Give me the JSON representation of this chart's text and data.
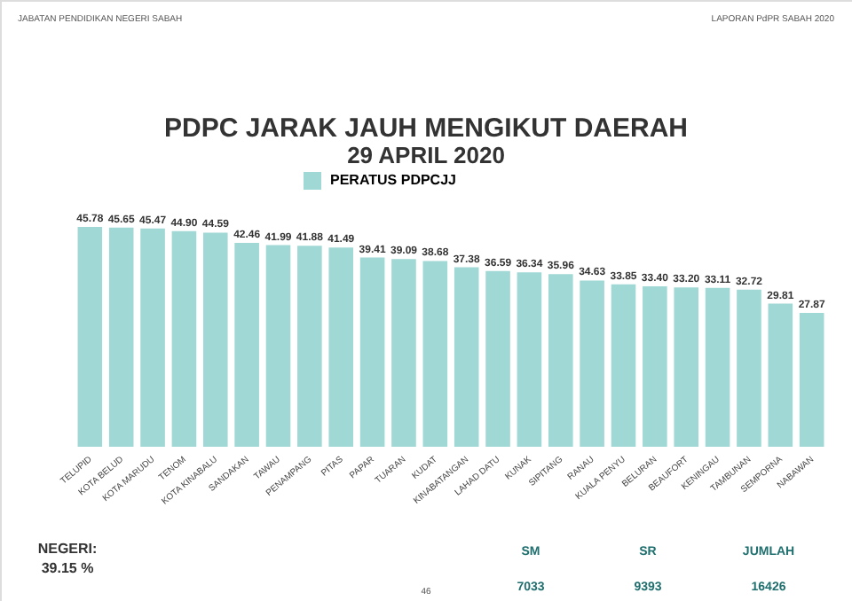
{
  "chart_data": {
    "type": "bar",
    "title": "PDPC JARAK JAUH MENGIKUT DAERAH",
    "subtitle": "29 APRIL 2020",
    "categories": [
      "TELUPID",
      "KOTA BELUD",
      "KOTA MARUDU",
      "TENOM",
      "KOTA KINABALU",
      "SANDAKAN",
      "TAWAU",
      "PENAMPANG",
      "PITAS",
      "PAPAR",
      "TUARAN",
      "KUDAT",
      "KINABATANGAN",
      "LAHAD DATU",
      "KUNAK",
      "SIPITANG",
      "RANAU",
      "KUALA PENYU",
      "BELURAN",
      "BEAUFORT",
      "KENINGAU",
      "TAMBUNAN",
      "SEMPORNA",
      "NABAWAN"
    ],
    "series": [
      {
        "name": "PERATUS PDPCJJ",
        "color": "#9fd8d4",
        "values": [
          45.78,
          45.65,
          45.47,
          44.9,
          44.59,
          42.46,
          41.99,
          41.88,
          41.49,
          39.41,
          39.09,
          38.68,
          37.38,
          36.59,
          36.34,
          35.96,
          34.63,
          33.85,
          33.4,
          33.2,
          33.11,
          32.72,
          29.81,
          27.87
        ],
        "value_labels": [
          "45.78",
          "45.65",
          "45.47",
          "44.90",
          "44.59",
          "42.46",
          "41.99",
          "41.88",
          "41.49",
          "39.41",
          "39.09",
          "38.68",
          "37.38",
          "36.59",
          "36.34",
          "35.96",
          "34.63",
          "33.85",
          "33.40",
          "33.20",
          "33.11",
          "32.72",
          "29.81",
          "27.87"
        ]
      }
    ],
    "legend": "top",
    "grid": false,
    "tick_labels": "x",
    "annotations": [
      "JABATAN PENDIDIKAN NEGERI SABAH",
      "LAPORAN PdPR SABAH 2020",
      "NEGERI:",
      "39.15 %",
      "SM",
      "SR",
      "JUMLAH",
      "7033",
      "9393",
      "16426",
      "46"
    ]
  }
}
